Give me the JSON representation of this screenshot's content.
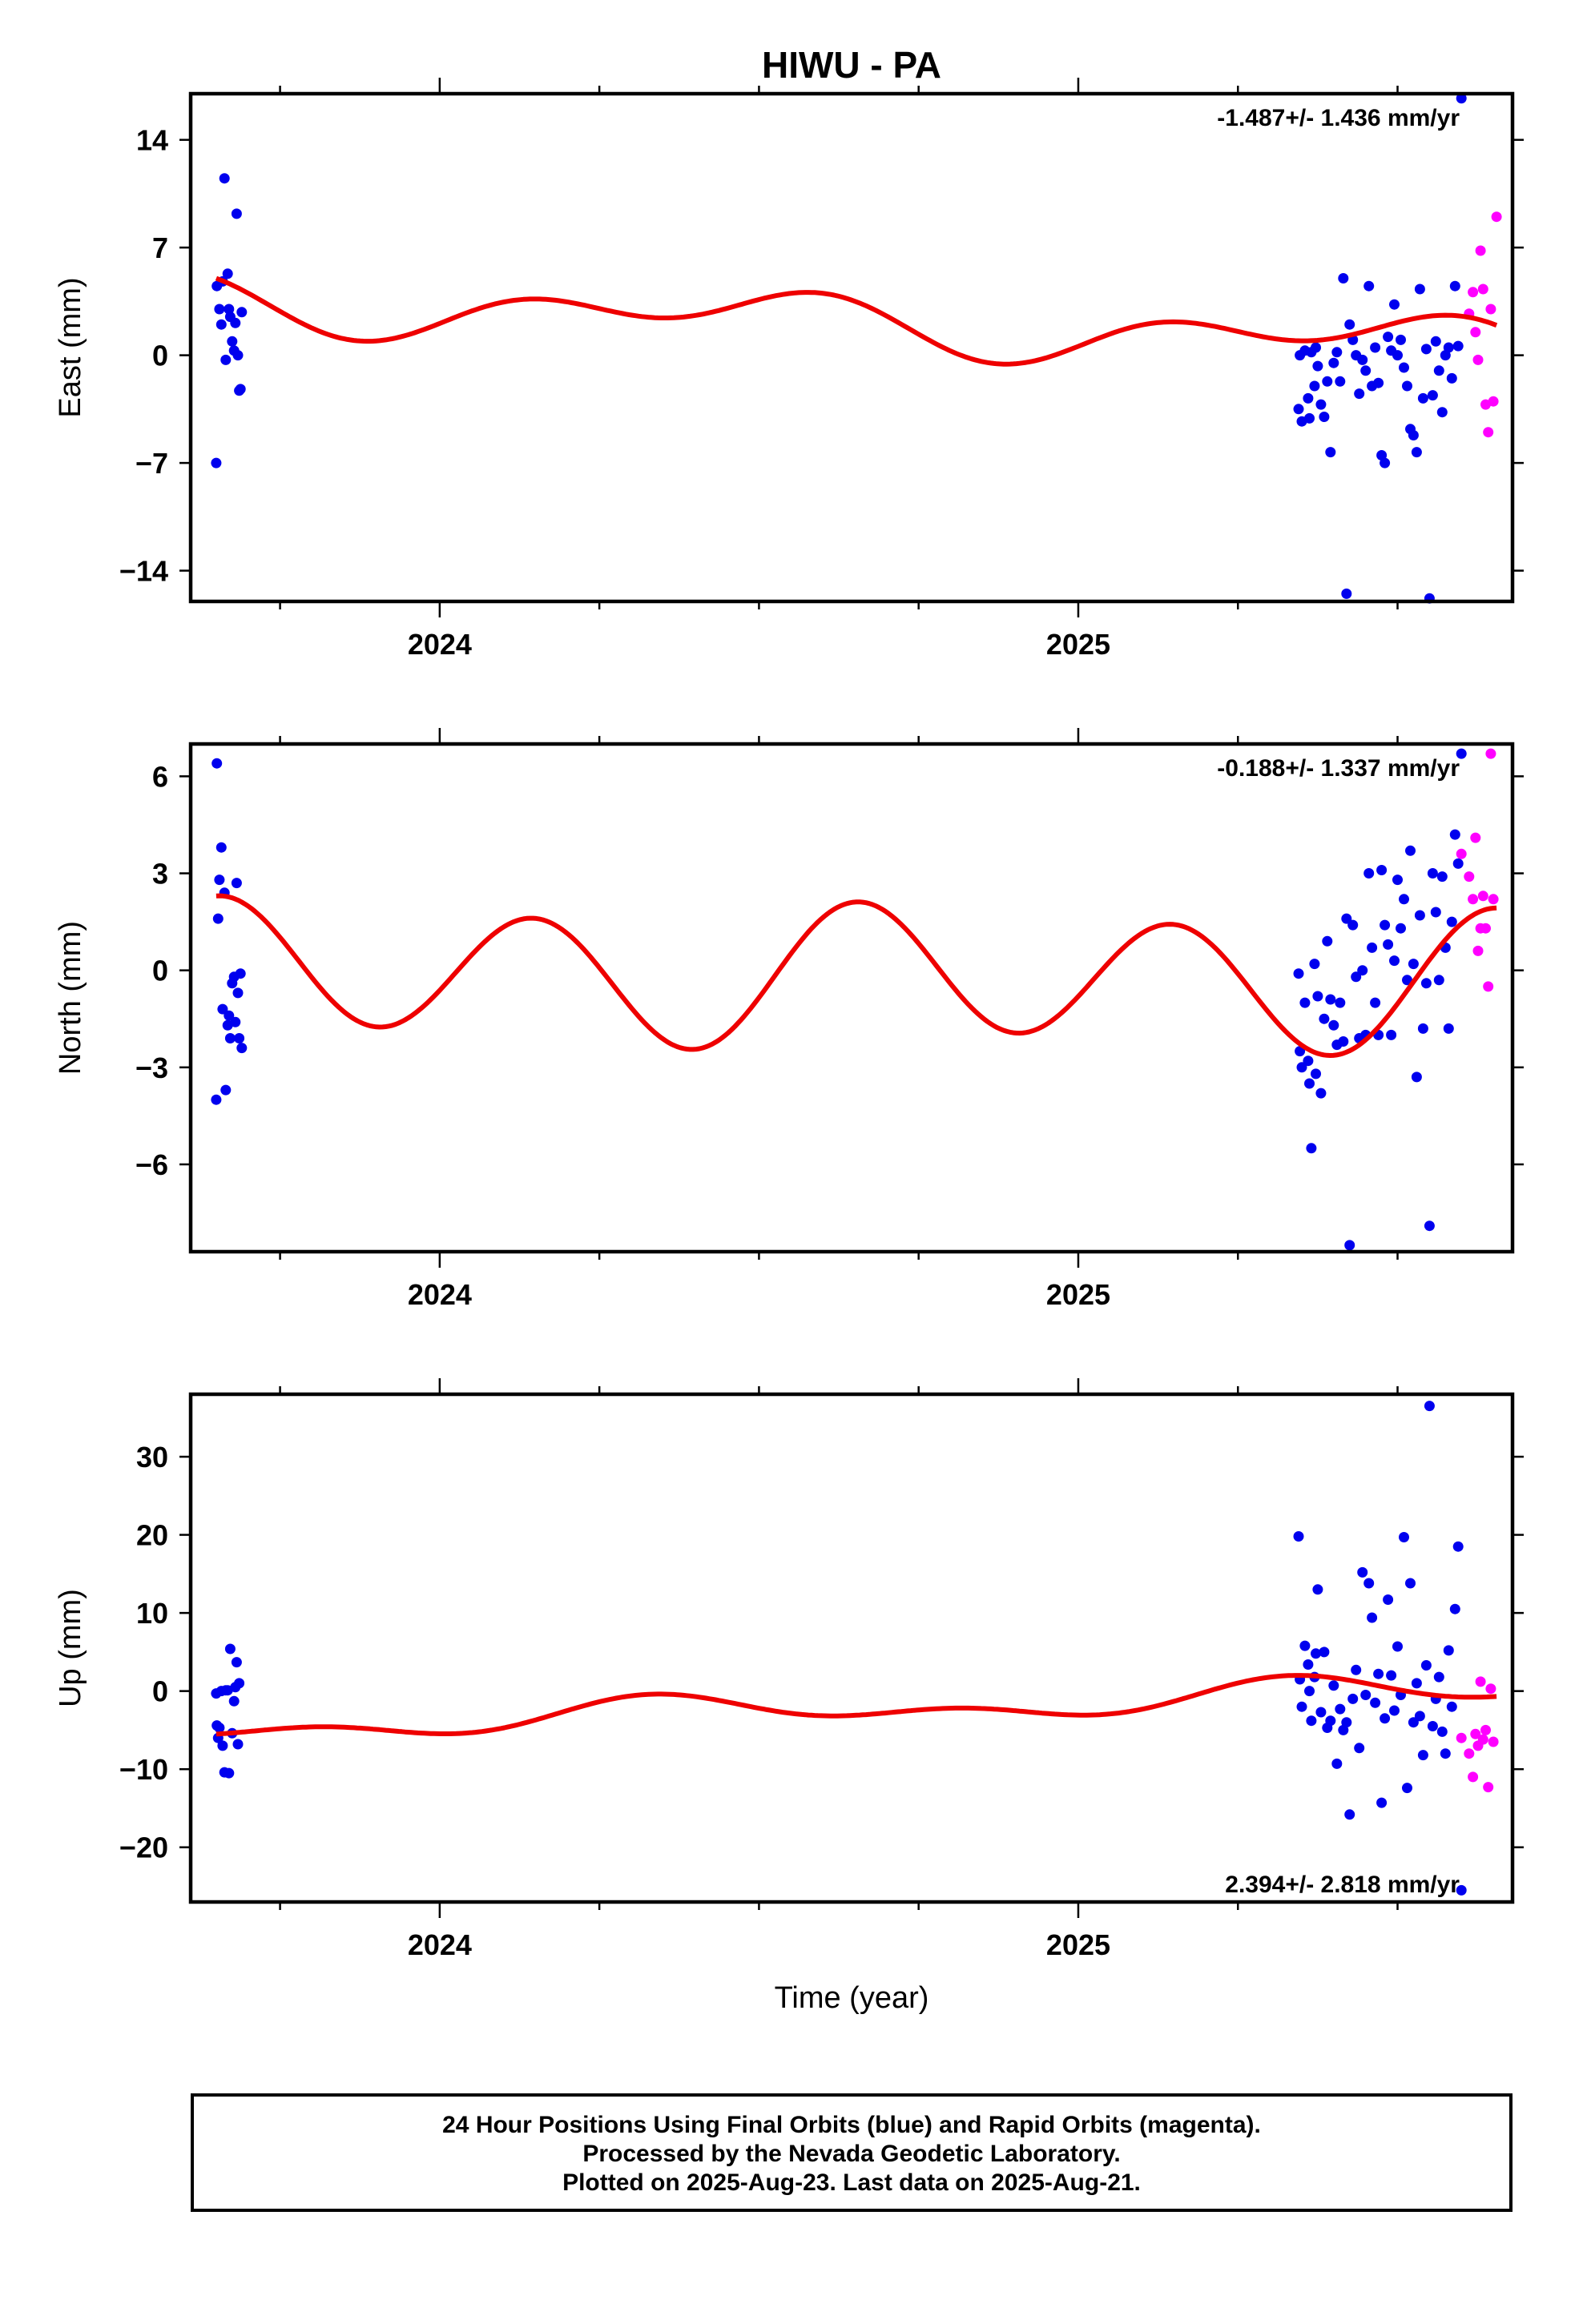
{
  "title": "HIWU - PA",
  "colors": {
    "final": "#0000ee",
    "rapid": "#ff00ff",
    "fit": "#ee0000"
  },
  "footer": {
    "line1": "24 Hour Positions Using Final Orbits (blue) and Rapid Orbits (magenta).",
    "line2": "Processed by the Nevada Geodetic Laboratory.",
    "line3": "Plotted on 2025-Aug-23. Last data on 2025-Aug-21."
  },
  "chart_data": [
    {
      "type": "scatter",
      "ylabel": "East (mm)",
      "xlabel": "",
      "rate": "-1.487+/- 1.436 mm/yr",
      "rate_position": "top-right",
      "xlim": [
        2023.61,
        2025.68
      ],
      "ylim": [
        -16,
        17
      ],
      "yticks": [
        14,
        7,
        0,
        -7,
        -14
      ],
      "xticks": [
        2024,
        2025
      ],
      "final_orbits": [
        [
          2023.65,
          -7.0
        ],
        [
          2023.651,
          4.5
        ],
        [
          2023.655,
          3.0
        ],
        [
          2023.658,
          2.0
        ],
        [
          2023.66,
          4.8
        ],
        [
          2023.663,
          11.5
        ],
        [
          2023.665,
          -0.3
        ],
        [
          2023.668,
          5.3
        ],
        [
          2023.67,
          3.0
        ],
        [
          2023.672,
          2.5
        ],
        [
          2023.675,
          0.9
        ],
        [
          2023.678,
          0.3
        ],
        [
          2023.68,
          2.1
        ],
        [
          2023.682,
          9.2
        ],
        [
          2023.684,
          0.0
        ],
        [
          2023.686,
          -2.3
        ],
        [
          2023.688,
          -2.2
        ],
        [
          2023.69,
          2.8
        ],
        [
          2025.345,
          -3.5
        ],
        [
          2025.347,
          0.0
        ],
        [
          2025.35,
          -4.3
        ],
        [
          2025.355,
          0.3
        ],
        [
          2025.36,
          -2.8
        ],
        [
          2025.362,
          -4.1
        ],
        [
          2025.365,
          0.2
        ],
        [
          2025.37,
          -2.0
        ],
        [
          2025.372,
          0.5
        ],
        [
          2025.375,
          -0.7
        ],
        [
          2025.38,
          -3.2
        ],
        [
          2025.385,
          -4.0
        ],
        [
          2025.39,
          -1.7
        ],
        [
          2025.395,
          -6.3
        ],
        [
          2025.4,
          -0.5
        ],
        [
          2025.405,
          0.2
        ],
        [
          2025.41,
          -1.7
        ],
        [
          2025.415,
          5.0
        ],
        [
          2025.42,
          -15.5
        ],
        [
          2025.425,
          2.0
        ],
        [
          2025.43,
          1.0
        ],
        [
          2025.435,
          0.0
        ],
        [
          2025.44,
          -2.5
        ],
        [
          2025.445,
          -0.3
        ],
        [
          2025.45,
          -1.0
        ],
        [
          2025.455,
          4.5
        ],
        [
          2025.46,
          -2.0
        ],
        [
          2025.465,
          0.5
        ],
        [
          2025.47,
          -1.8
        ],
        [
          2025.475,
          -6.5
        ],
        [
          2025.48,
          -7.0
        ],
        [
          2025.485,
          1.2
        ],
        [
          2025.49,
          0.3
        ],
        [
          2025.495,
          3.3
        ],
        [
          2025.5,
          0.0
        ],
        [
          2025.505,
          1.0
        ],
        [
          2025.51,
          -0.8
        ],
        [
          2025.515,
          -2.0
        ],
        [
          2025.52,
          -4.8
        ],
        [
          2025.525,
          -5.2
        ],
        [
          2025.53,
          -6.3
        ],
        [
          2025.535,
          4.3
        ],
        [
          2025.54,
          -2.8
        ],
        [
          2025.545,
          0.4
        ],
        [
          2025.55,
          -15.8
        ],
        [
          2025.555,
          -2.6
        ],
        [
          2025.56,
          0.9
        ],
        [
          2025.565,
          -1.0
        ],
        [
          2025.57,
          -3.7
        ],
        [
          2025.575,
          0.0
        ],
        [
          2025.58,
          0.5
        ],
        [
          2025.585,
          -1.5
        ],
        [
          2025.59,
          4.5
        ],
        [
          2025.595,
          0.6
        ],
        [
          2025.6,
          16.7
        ]
      ],
      "rapid_orbits": [
        [
          2025.612,
          2.7
        ],
        [
          2025.618,
          4.1
        ],
        [
          2025.622,
          1.5
        ],
        [
          2025.626,
          -0.3
        ],
        [
          2025.63,
          6.8
        ],
        [
          2025.634,
          4.3
        ],
        [
          2025.638,
          -3.2
        ],
        [
          2025.642,
          -5.0
        ],
        [
          2025.646,
          3.0
        ],
        [
          2025.65,
          -3.0
        ],
        [
          2025.655,
          9.0
        ]
      ],
      "fit": {
        "offset": 3.6,
        "rate": -1.487,
        "a1": -1.2,
        "b1": 0.3,
        "a2": -0.5,
        "b2": 1.1,
        "t0": 2023.65
      }
    },
    {
      "type": "scatter",
      "ylabel": "North (mm)",
      "xlabel": "",
      "rate": "-0.188+/- 1.337 mm/yr",
      "rate_position": "top-right",
      "xlim": [
        2023.61,
        2025.68
      ],
      "ylim": [
        -8.7,
        7.0
      ],
      "yticks": [
        6,
        3,
        0,
        -3,
        -6
      ],
      "xticks": [
        2024,
        2025
      ],
      "final_orbits": [
        [
          2023.65,
          -4.0
        ],
        [
          2023.651,
          6.4
        ],
        [
          2023.653,
          1.6
        ],
        [
          2023.655,
          2.8
        ],
        [
          2023.658,
          3.8
        ],
        [
          2023.66,
          -1.2
        ],
        [
          2023.663,
          2.4
        ],
        [
          2023.665,
          -3.7
        ],
        [
          2023.668,
          -1.7
        ],
        [
          2023.67,
          -1.4
        ],
        [
          2023.672,
          -2.1
        ],
        [
          2023.675,
          -0.4
        ],
        [
          2023.678,
          -0.2
        ],
        [
          2023.68,
          -1.6
        ],
        [
          2023.682,
          2.7
        ],
        [
          2023.684,
          -0.7
        ],
        [
          2023.686,
          -2.1
        ],
        [
          2023.688,
          -0.1
        ],
        [
          2023.69,
          -2.4
        ],
        [
          2025.345,
          -0.1
        ],
        [
          2025.347,
          -2.5
        ],
        [
          2025.35,
          -3.0
        ],
        [
          2025.355,
          -1.0
        ],
        [
          2025.36,
          -2.8
        ],
        [
          2025.362,
          -3.5
        ],
        [
          2025.365,
          -5.5
        ],
        [
          2025.37,
          0.2
        ],
        [
          2025.372,
          -3.2
        ],
        [
          2025.375,
          -0.8
        ],
        [
          2025.38,
          -3.8
        ],
        [
          2025.385,
          -1.5
        ],
        [
          2025.39,
          0.9
        ],
        [
          2025.395,
          -0.9
        ],
        [
          2025.4,
          -1.7
        ],
        [
          2025.405,
          -2.3
        ],
        [
          2025.41,
          -1.0
        ],
        [
          2025.415,
          -2.2
        ],
        [
          2025.42,
          1.6
        ],
        [
          2025.425,
          -8.5
        ],
        [
          2025.43,
          1.4
        ],
        [
          2025.435,
          -0.2
        ],
        [
          2025.44,
          -2.1
        ],
        [
          2025.445,
          0.0
        ],
        [
          2025.45,
          -2.0
        ],
        [
          2025.455,
          3.0
        ],
        [
          2025.46,
          0.7
        ],
        [
          2025.465,
          -1.0
        ],
        [
          2025.47,
          -2.0
        ],
        [
          2025.475,
          3.1
        ],
        [
          2025.48,
          1.4
        ],
        [
          2025.485,
          0.8
        ],
        [
          2025.49,
          -2.0
        ],
        [
          2025.495,
          0.3
        ],
        [
          2025.5,
          2.8
        ],
        [
          2025.505,
          1.3
        ],
        [
          2025.51,
          2.2
        ],
        [
          2025.515,
          -0.3
        ],
        [
          2025.52,
          3.7
        ],
        [
          2025.525,
          0.2
        ],
        [
          2025.53,
          -3.3
        ],
        [
          2025.535,
          1.7
        ],
        [
          2025.54,
          -1.8
        ],
        [
          2025.545,
          -0.4
        ],
        [
          2025.55,
          -7.9
        ],
        [
          2025.555,
          3.0
        ],
        [
          2025.56,
          1.8
        ],
        [
          2025.565,
          -0.3
        ],
        [
          2025.57,
          2.9
        ],
        [
          2025.575,
          0.7
        ],
        [
          2025.58,
          -1.8
        ],
        [
          2025.585,
          1.5
        ],
        [
          2025.59,
          4.2
        ],
        [
          2025.595,
          3.3
        ],
        [
          2025.6,
          6.7
        ]
      ],
      "rapid_orbits": [
        [
          2025.6,
          3.6
        ],
        [
          2025.612,
          2.9
        ],
        [
          2025.618,
          2.2
        ],
        [
          2025.622,
          4.1
        ],
        [
          2025.626,
          0.6
        ],
        [
          2025.63,
          1.3
        ],
        [
          2025.634,
          2.3
        ],
        [
          2025.638,
          1.3
        ],
        [
          2025.642,
          -0.5
        ],
        [
          2025.646,
          6.7
        ],
        [
          2025.65,
          2.2
        ]
      ],
      "fit": {
        "offset": 0.0,
        "rate": -0.188,
        "a1": 0.3,
        "b1": 0.3,
        "a2": 0.0,
        "b2": 2.0,
        "t0": 2023.65
      }
    },
    {
      "type": "scatter",
      "ylabel": "Up (mm)",
      "xlabel": "Time (year)",
      "rate": "2.394+/- 2.818 mm/yr",
      "rate_position": "bottom-right",
      "xlim": [
        2023.61,
        2025.68
      ],
      "ylim": [
        -27,
        38
      ],
      "yticks": [
        30,
        20,
        10,
        0,
        -10,
        -20
      ],
      "xticks": [
        2024,
        2025
      ],
      "final_orbits": [
        [
          2023.65,
          -0.3
        ],
        [
          2023.651,
          -4.4
        ],
        [
          2023.653,
          -6.0
        ],
        [
          2023.655,
          -4.7
        ],
        [
          2023.658,
          0.0
        ],
        [
          2023.66,
          -7.0
        ],
        [
          2023.663,
          -10.4
        ],
        [
          2023.665,
          0.1
        ],
        [
          2023.668,
          0.1
        ],
        [
          2023.67,
          -10.5
        ],
        [
          2023.672,
          5.4
        ],
        [
          2023.675,
          -5.4
        ],
        [
          2023.678,
          -1.3
        ],
        [
          2023.68,
          0.5
        ],
        [
          2023.682,
          3.7
        ],
        [
          2023.684,
          -6.8
        ],
        [
          2023.686,
          1.0
        ],
        [
          2025.345,
          19.8
        ],
        [
          2025.347,
          1.5
        ],
        [
          2025.35,
          -2.0
        ],
        [
          2025.355,
          5.8
        ],
        [
          2025.36,
          3.4
        ],
        [
          2025.362,
          0.0
        ],
        [
          2025.365,
          -3.8
        ],
        [
          2025.37,
          1.8
        ],
        [
          2025.372,
          4.8
        ],
        [
          2025.375,
          13.0
        ],
        [
          2025.38,
          -2.7
        ],
        [
          2025.385,
          5.0
        ],
        [
          2025.39,
          -4.7
        ],
        [
          2025.395,
          -3.8
        ],
        [
          2025.4,
          0.7
        ],
        [
          2025.405,
          -9.3
        ],
        [
          2025.41,
          -2.3
        ],
        [
          2025.415,
          -5.0
        ],
        [
          2025.42,
          -4.0
        ],
        [
          2025.425,
          -15.8
        ],
        [
          2025.43,
          -1.0
        ],
        [
          2025.435,
          2.7
        ],
        [
          2025.44,
          -7.3
        ],
        [
          2025.445,
          15.2
        ],
        [
          2025.45,
          -0.5
        ],
        [
          2025.455,
          13.8
        ],
        [
          2025.46,
          9.4
        ],
        [
          2025.465,
          -1.5
        ],
        [
          2025.47,
          2.2
        ],
        [
          2025.475,
          -14.3
        ],
        [
          2025.48,
          -3.5
        ],
        [
          2025.485,
          11.7
        ],
        [
          2025.49,
          2.0
        ],
        [
          2025.495,
          -2.5
        ],
        [
          2025.5,
          5.7
        ],
        [
          2025.505,
          -0.5
        ],
        [
          2025.51,
          19.7
        ],
        [
          2025.515,
          -12.4
        ],
        [
          2025.52,
          13.8
        ],
        [
          2025.525,
          -4.0
        ],
        [
          2025.53,
          1.0
        ],
        [
          2025.535,
          -3.2
        ],
        [
          2025.54,
          -8.2
        ],
        [
          2025.545,
          3.3
        ],
        [
          2025.55,
          36.5
        ],
        [
          2025.555,
          -4.5
        ],
        [
          2025.56,
          -1.0
        ],
        [
          2025.565,
          1.8
        ],
        [
          2025.57,
          -5.2
        ],
        [
          2025.575,
          -8.0
        ],
        [
          2025.58,
          5.2
        ],
        [
          2025.585,
          -2.0
        ],
        [
          2025.59,
          10.5
        ],
        [
          2025.595,
          18.5
        ],
        [
          2025.6,
          -25.5
        ]
      ],
      "rapid_orbits": [
        [
          2025.6,
          -6.0
        ],
        [
          2025.612,
          -8.0
        ],
        [
          2025.618,
          -11.0
        ],
        [
          2025.622,
          -5.5
        ],
        [
          2025.626,
          -7.0
        ],
        [
          2025.63,
          1.2
        ],
        [
          2025.634,
          -6.2
        ],
        [
          2025.638,
          -5.0
        ],
        [
          2025.642,
          -12.3
        ],
        [
          2025.646,
          0.3
        ],
        [
          2025.65,
          -6.5
        ]
      ],
      "fit": {
        "offset": -4.6,
        "rate": 2.394,
        "a1": -1.5,
        "b1": -0.3,
        "a2": 0.9,
        "b2": -0.6,
        "t0": 2023.65
      }
    }
  ]
}
